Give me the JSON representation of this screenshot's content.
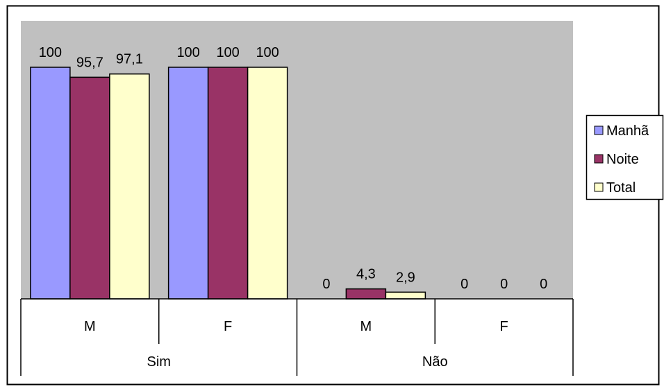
{
  "chart_data": {
    "type": "bar",
    "groups": [
      {
        "label": "Sim",
        "categories": [
          "M",
          "F"
        ]
      },
      {
        "label": "Não",
        "categories": [
          "M",
          "F"
        ]
      }
    ],
    "series": [
      {
        "name": "Manhã",
        "color": "#9999ff",
        "labels": [
          "100",
          "100",
          "0",
          "0"
        ],
        "values": [
          100,
          100,
          0,
          0
        ]
      },
      {
        "name": "Noite",
        "color": "#993366",
        "labels": [
          "95,7",
          "100",
          "4,3",
          "0"
        ],
        "values": [
          95.7,
          100,
          4.3,
          0
        ]
      },
      {
        "name": "Total",
        "color": "#ffffcc",
        "labels": [
          "97,1",
          "100",
          "2,9",
          "0"
        ],
        "values": [
          97.1,
          100,
          2.9,
          0
        ]
      }
    ],
    "ylim": [
      0,
      100
    ],
    "plot_background": "#c0c0c0",
    "grid": false,
    "legend_position": "right"
  }
}
